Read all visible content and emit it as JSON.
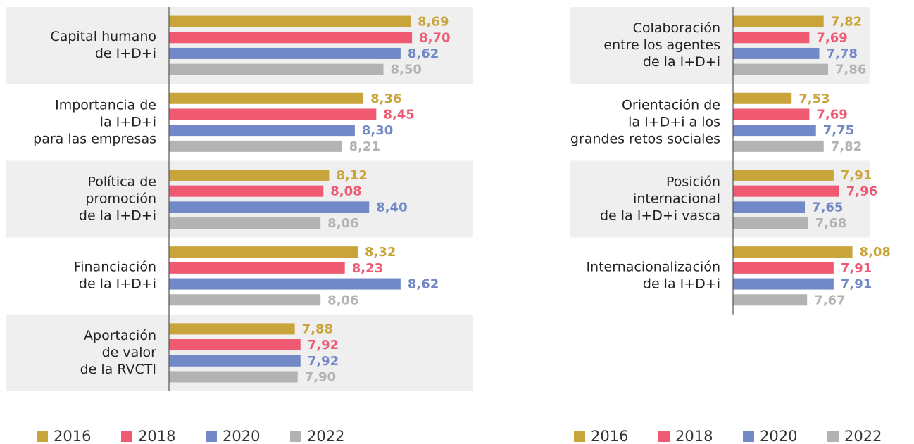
{
  "chart_data": [
    {
      "type": "barh",
      "categories": [
        [
          "Capital humano",
          "de I+D+i"
        ],
        [
          "Importancia de",
          "la I+D+i",
          "para las empresas"
        ],
        [
          "Política de",
          "promoción",
          "de la I+D+i"
        ],
        [
          "Financiación",
          "de la I+D+i"
        ],
        [
          "Aportación",
          "de valor",
          "de la RVCTI"
        ]
      ],
      "series": [
        {
          "name": "2016",
          "color": "#c9a43a",
          "values": [
            8.69,
            8.36,
            8.12,
            8.32,
            7.88
          ],
          "value_labels": [
            "8,69",
            "8,36",
            "8,12",
            "8,32",
            "7,88"
          ]
        },
        {
          "name": "2018",
          "color": "#ef5a72",
          "values": [
            8.7,
            8.45,
            8.08,
            8.23,
            7.92
          ],
          "value_labels": [
            "8,70",
            "8,45",
            "8,08",
            "8,23",
            "7,92"
          ]
        },
        {
          "name": "2020",
          "color": "#7189c6",
          "values": [
            8.62,
            8.3,
            8.4,
            8.62,
            7.92
          ],
          "value_labels": [
            "8,62",
            "8,30",
            "8,40",
            "8,62",
            "7,92"
          ]
        },
        {
          "name": "2022",
          "color": "#b3b3b3",
          "values": [
            8.5,
            8.21,
            8.06,
            8.06,
            7.9
          ],
          "value_labels": [
            "8,50",
            "8,21",
            "8,06",
            "8,06",
            "7,90"
          ]
        }
      ],
      "xlim": [
        7,
        9
      ],
      "legend": "bottom"
    },
    {
      "type": "barh",
      "categories": [
        [
          "Colaboración",
          "entre los agentes",
          "de la I+D+i"
        ],
        [
          "Orientación de",
          "la I+D+i a los",
          "grandes retos sociales"
        ],
        [
          "Posición",
          "internacional",
          "de la I+D+i vasca"
        ],
        [
          "Internacionalización",
          "de la I+D+i"
        ]
      ],
      "series": [
        {
          "name": "2016",
          "color": "#c9a43a",
          "values": [
            7.82,
            7.53,
            7.91,
            8.08
          ],
          "value_labels": [
            "7,82",
            "7,53",
            "7,91",
            "8,08"
          ]
        },
        {
          "name": "2018",
          "color": "#ef5a72",
          "values": [
            7.69,
            7.69,
            7.96,
            7.91
          ],
          "value_labels": [
            "7,69",
            "7,69",
            "7,96",
            "7,91"
          ]
        },
        {
          "name": "2020",
          "color": "#7189c6",
          "values": [
            7.78,
            7.75,
            7.65,
            7.91
          ],
          "value_labels": [
            "7,78",
            "7,75",
            "7,65",
            "7,91"
          ]
        },
        {
          "name": "2022",
          "color": "#b3b3b3",
          "values": [
            7.86,
            7.82,
            7.68,
            7.67
          ],
          "value_labels": [
            "7,86",
            "7,82",
            "7,68",
            "7,67"
          ]
        }
      ],
      "xlim": [
        7,
        8.5
      ],
      "legend": "bottom"
    }
  ]
}
